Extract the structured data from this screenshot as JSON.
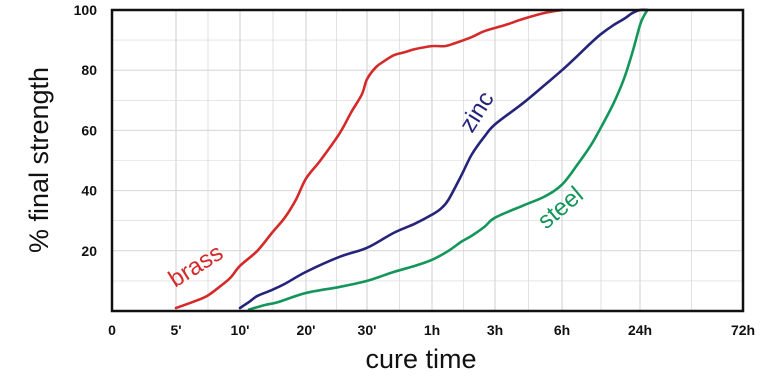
{
  "chart_data": {
    "type": "line",
    "title": "",
    "xlabel": "cure time",
    "ylabel": "% final strength",
    "x_tick_labels": [
      "0",
      "5'",
      "10'",
      "20'",
      "30'",
      "1h",
      "3h",
      "6h",
      "24h",
      "72h"
    ],
    "y_ticks": [
      20,
      40,
      60,
      80,
      100
    ],
    "y_tick_labels": [
      "20",
      "40",
      "60",
      "80",
      "100"
    ],
    "ylim": [
      0,
      100
    ],
    "grid": true,
    "legend": "none",
    "series": [
      {
        "name": "brass",
        "color": "#d42a2a",
        "x": [
          5,
          6,
          7,
          8,
          9,
          10,
          12,
          14,
          16,
          18,
          20,
          22,
          25,
          27,
          29,
          30,
          33,
          36,
          40,
          45,
          50,
          60,
          75,
          90,
          120,
          150,
          200,
          240,
          300,
          360
        ],
        "y": [
          1,
          3,
          5,
          8,
          11,
          15,
          20,
          26,
          31,
          37,
          44,
          50,
          59,
          66,
          72,
          77,
          81,
          83,
          85,
          86,
          87,
          88,
          88,
          89,
          91,
          93,
          95,
          97,
          99,
          100
        ]
      },
      {
        "name": "zinc",
        "color": "#25237a",
        "x": [
          10,
          11,
          12,
          14,
          16,
          20,
          25,
          30,
          40,
          50,
          60,
          70,
          80,
          100,
          120,
          150,
          180,
          240,
          300,
          360,
          480,
          600,
          720,
          900,
          1080,
          1260,
          1440,
          1560
        ],
        "y": [
          1,
          3,
          5,
          7,
          9,
          13,
          18,
          21,
          26,
          29,
          32,
          34,
          37,
          45,
          52,
          58,
          62,
          69,
          75,
          80,
          85,
          89,
          92,
          95,
          97,
          99,
          100,
          100
        ]
      },
      {
        "name": "steel",
        "color": "#14955a",
        "x": [
          11,
          13,
          15,
          20,
          25,
          30,
          40,
          50,
          60,
          80,
          100,
          120,
          150,
          180,
          240,
          300,
          360,
          480,
          600,
          720,
          900,
          1080,
          1260,
          1440,
          1500,
          1560
        ],
        "y": [
          0.5,
          2,
          3,
          6,
          8,
          10,
          13,
          15,
          17,
          20,
          23,
          25,
          28,
          31,
          35,
          38,
          42,
          49,
          55,
          61,
          69,
          77,
          86,
          95,
          98,
          100
        ]
      }
    ],
    "annotations": [
      {
        "text": "brass",
        "series": "brass"
      },
      {
        "text": "zinc",
        "series": "zinc"
      },
      {
        "text": "steel",
        "series": "steel"
      }
    ]
  }
}
